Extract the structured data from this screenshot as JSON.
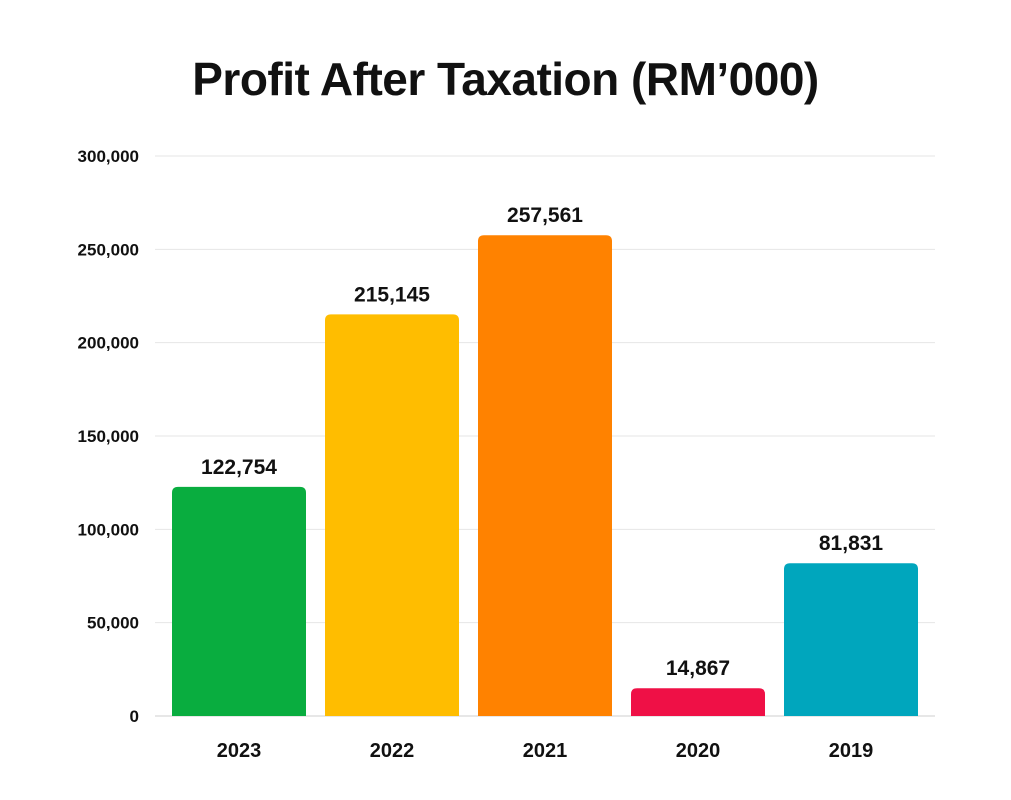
{
  "chart_data": {
    "type": "bar",
    "title": "Profit After Taxation (RM’000)",
    "xlabel": "",
    "ylabel": "",
    "categories": [
      "2023",
      "2022",
      "2021",
      "2020",
      "2019"
    ],
    "values": [
      122754,
      215145,
      257561,
      14867,
      81831
    ],
    "value_labels": [
      "122,754",
      "215,145",
      "257,561",
      "14,867",
      "81,831"
    ],
    "colors": [
      "#09ad3f",
      "#ffbd00",
      "#ff8200",
      "#ef1046",
      "#00a6bd"
    ],
    "ylim": [
      0,
      300000
    ],
    "yticks": [
      0,
      50000,
      100000,
      150000,
      200000,
      250000,
      300000
    ],
    "ytick_labels": [
      "0",
      "50,000",
      "100,000",
      "150,000",
      "200,000",
      "250,000",
      "300,000"
    ],
    "grid": true,
    "legend": "none"
  }
}
